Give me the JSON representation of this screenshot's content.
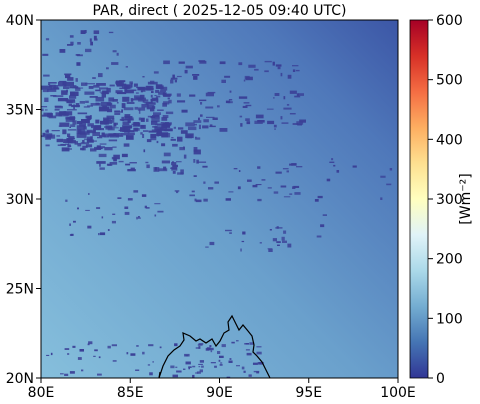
{
  "title": "PAR, direct ( 2025-12-05 09:40 UTC)",
  "map": {
    "lon_range": [
      80,
      100
    ],
    "lat_range": [
      20,
      40
    ],
    "lon_ticks": [
      {
        "value": 80,
        "label": "80E"
      },
      {
        "value": 85,
        "label": "85E"
      },
      {
        "value": 90,
        "label": "90E"
      },
      {
        "value": 95,
        "label": "95E"
      },
      {
        "value": 100,
        "label": "100E"
      }
    ],
    "lat_ticks": [
      {
        "value": 20,
        "label": "20N"
      },
      {
        "value": 25,
        "label": "25N"
      },
      {
        "value": 30,
        "label": "30N"
      },
      {
        "value": 35,
        "label": "35N"
      },
      {
        "value": 40,
        "label": "40N"
      }
    ]
  },
  "colorbar": {
    "label": "[Wm⁻²]",
    "range": [
      0,
      600
    ],
    "ticks": [
      {
        "value": 0,
        "label": "0"
      },
      {
        "value": 100,
        "label": "100"
      },
      {
        "value": 200,
        "label": "200"
      },
      {
        "value": 300,
        "label": "300"
      },
      {
        "value": 400,
        "label": "400"
      },
      {
        "value": 500,
        "label": "500"
      },
      {
        "value": 600,
        "label": "600"
      }
    ],
    "colors": [
      "#313695",
      "#4575b4",
      "#74add1",
      "#abd9e9",
      "#e0f3f8",
      "#ffffbf",
      "#fee090",
      "#fdae61",
      "#f46d43",
      "#d73027",
      "#a50026"
    ]
  },
  "colors": {
    "cloud": "#3a3f96",
    "coast": "#000000"
  }
}
